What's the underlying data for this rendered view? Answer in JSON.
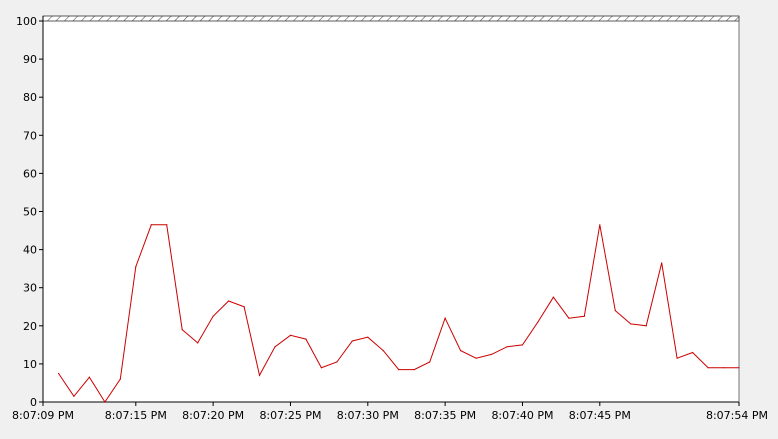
{
  "chart_data": {
    "type": "line",
    "title": "",
    "xlabel": "",
    "ylabel": "",
    "ylim": [
      0,
      100
    ],
    "yticks": [
      0,
      10,
      20,
      30,
      40,
      50,
      60,
      70,
      80,
      90,
      100
    ],
    "xrange": [
      "8:07:09 PM",
      "8:07:54 PM"
    ],
    "xticks": [
      {
        "t": 0,
        "label": "8:07:09 PM"
      },
      {
        "t": 6,
        "label": "8:07:15 PM"
      },
      {
        "t": 11,
        "label": "8:07:20 PM"
      },
      {
        "t": 16,
        "label": "8:07:25 PM"
      },
      {
        "t": 21,
        "label": "8:07:30 PM"
      },
      {
        "t": 26,
        "label": "8:07:35 PM"
      },
      {
        "t": 31,
        "label": "8:07:40 PM"
      },
      {
        "t": 36,
        "label": "8:07:45 PM"
      },
      {
        "t": 45,
        "label": "8:07:54 PM"
      }
    ],
    "grid": false,
    "line_color": "#cc0000",
    "series": [
      {
        "values": [
          [
            1,
            7.5
          ],
          [
            2,
            1.5
          ],
          [
            3,
            6.5
          ],
          [
            4,
            0
          ],
          [
            5,
            6
          ],
          [
            6,
            35.5
          ],
          [
            7,
            46.5
          ],
          [
            8,
            46.5
          ],
          [
            9,
            19
          ],
          [
            10,
            15.5
          ],
          [
            11,
            22.5
          ],
          [
            12,
            26.5
          ],
          [
            13,
            25
          ],
          [
            14,
            7
          ],
          [
            15,
            14.5
          ],
          [
            16,
            17.5
          ],
          [
            17,
            16.5
          ],
          [
            18,
            9
          ],
          [
            19,
            10.5
          ],
          [
            20,
            16
          ],
          [
            21,
            17
          ],
          [
            22,
            13.5
          ],
          [
            23,
            8.5
          ],
          [
            24,
            8.5
          ],
          [
            25,
            10.5
          ],
          [
            26,
            22
          ],
          [
            27,
            13.5
          ],
          [
            28,
            11.5
          ],
          [
            29,
            12.5
          ],
          [
            30,
            14.5
          ],
          [
            31,
            15
          ],
          [
            32,
            21
          ],
          [
            33,
            27.5
          ],
          [
            34,
            22
          ],
          [
            35,
            22.5
          ],
          [
            36,
            46.5
          ],
          [
            37,
            24
          ],
          [
            38,
            20.5
          ],
          [
            39,
            20
          ],
          [
            40,
            36.5
          ],
          [
            41,
            11.5
          ],
          [
            42,
            13
          ],
          [
            43,
            9
          ],
          [
            44,
            9
          ],
          [
            45,
            9
          ]
        ]
      }
    ]
  }
}
